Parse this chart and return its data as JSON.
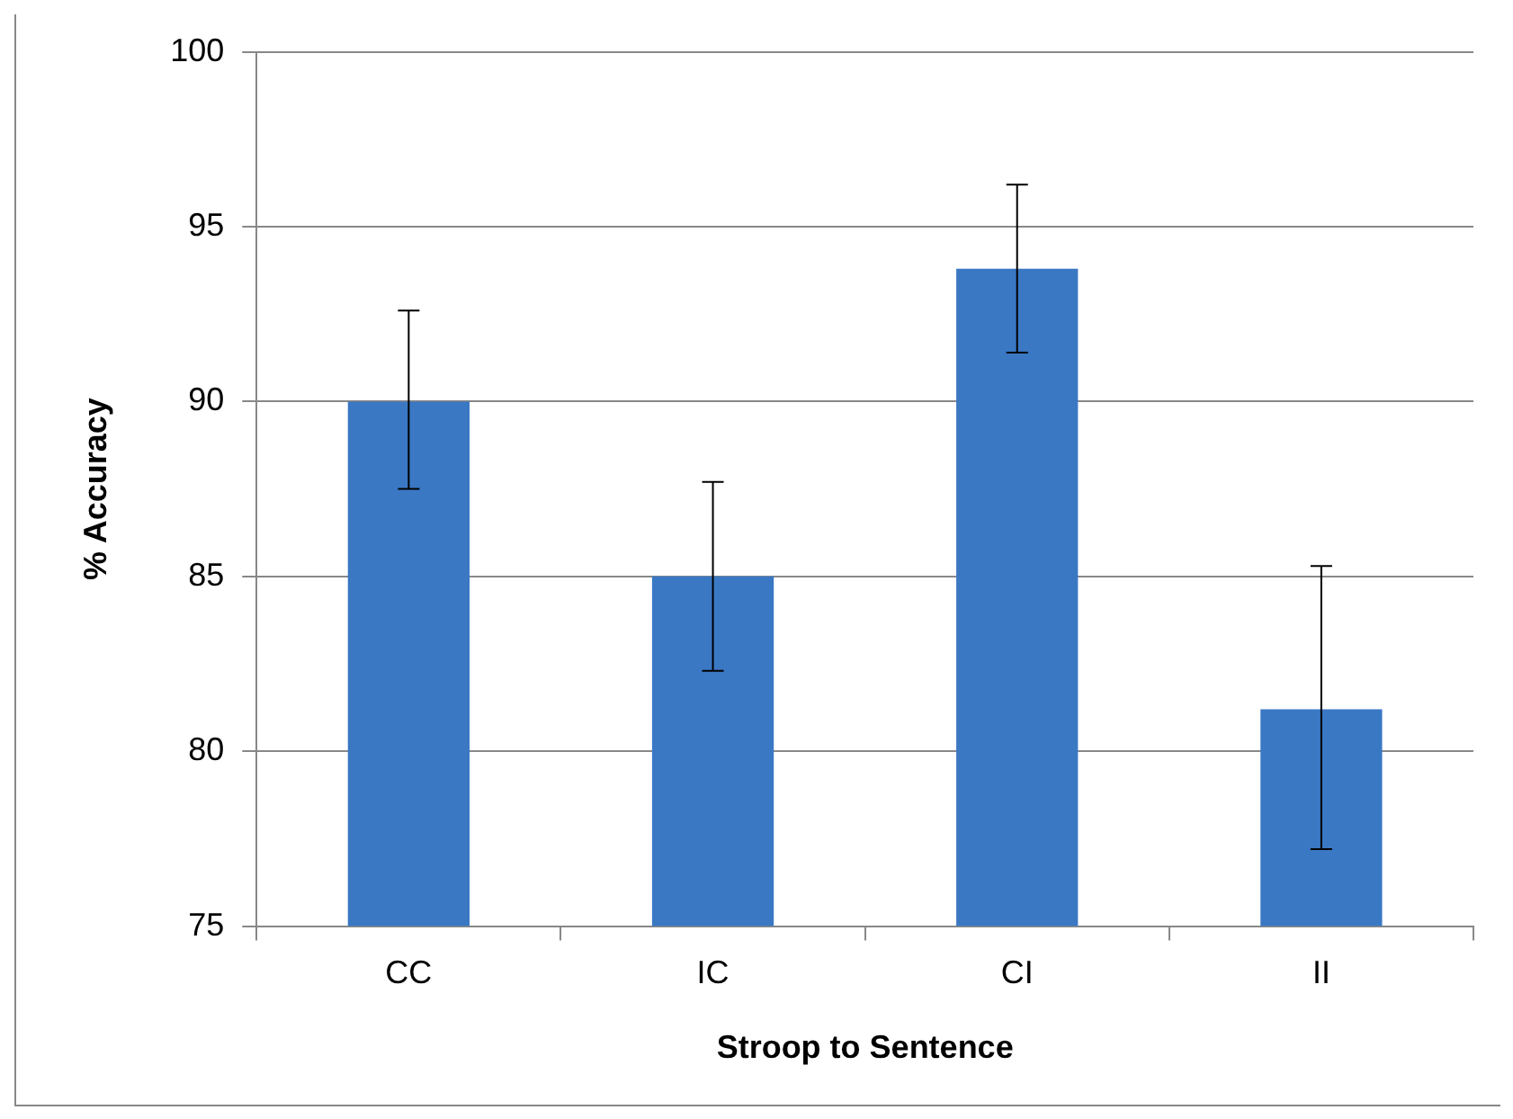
{
  "chart_data": {
    "type": "bar",
    "xlabel": "Stroop to Sentence",
    "ylabel": "% Accuracy",
    "categories": [
      "CC",
      "IC",
      "CI",
      "II"
    ],
    "values": [
      90,
      85,
      93.8,
      81.2
    ],
    "errors": [
      [
        87.5,
        92.6
      ],
      [
        82.3,
        87.7
      ],
      [
        91.4,
        96.2
      ],
      [
        77.2,
        85.3
      ]
    ],
    "color": "#3a78c4",
    "ylim": [
      75,
      100
    ],
    "yticks": [
      75,
      80,
      85,
      90,
      95,
      100
    ],
    "grid": "y",
    "legend": false
  }
}
